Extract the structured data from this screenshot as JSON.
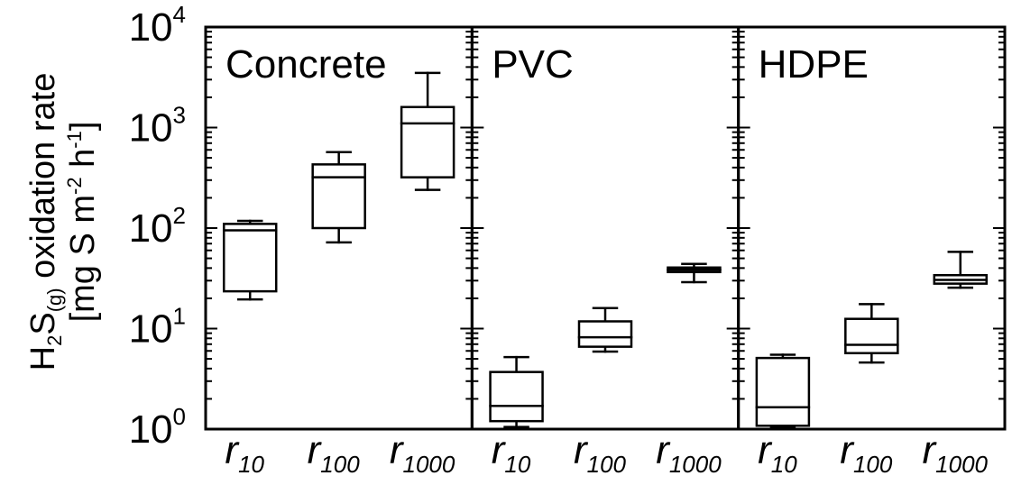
{
  "chart_data": {
    "type": "box",
    "yscale": "log",
    "ylim": [
      1,
      10000
    ],
    "yticks": [
      {
        "value": 1,
        "base": "10",
        "exp": "0"
      },
      {
        "value": 10,
        "base": "10",
        "exp": "1"
      },
      {
        "value": 100,
        "base": "10",
        "exp": "2"
      },
      {
        "value": 1000,
        "base": "10",
        "exp": "3"
      },
      {
        "value": 10000,
        "base": "10",
        "exp": "4"
      }
    ],
    "ylabel": {
      "line1_parts": [
        "H",
        "2",
        "S",
        "(g)",
        " oxidation rate"
      ],
      "line2_parts": [
        "[mg S m",
        "-2",
        " h",
        "-1",
        "]"
      ]
    },
    "categories": [
      {
        "main": "r",
        "sub": "10"
      },
      {
        "main": "r",
        "sub": "100"
      },
      {
        "main": "r",
        "sub": "1000"
      }
    ],
    "panels": [
      {
        "title": "Concrete",
        "boxes": [
          {
            "whisker_low": 19.5,
            "q1": 23.5,
            "median": 95,
            "q3": 110,
            "whisker_high": 118
          },
          {
            "whisker_low": 72,
            "q1": 100,
            "median": 320,
            "q3": 430,
            "whisker_high": 570
          },
          {
            "whisker_low": 240,
            "q1": 320,
            "median": 1100,
            "q3": 1600,
            "whisker_high": 3500
          }
        ]
      },
      {
        "title": "PVC",
        "boxes": [
          {
            "whisker_low": 1.05,
            "q1": 1.2,
            "median": 1.7,
            "q3": 3.7,
            "whisker_high": 5.2
          },
          {
            "whisker_low": 5.9,
            "q1": 6.6,
            "median": 8.2,
            "q3": 11.8,
            "whisker_high": 16
          },
          {
            "whisker_low": 29,
            "q1": 36.5,
            "median": 38.5,
            "q3": 40.5,
            "whisker_high": 44
          }
        ]
      },
      {
        "title": "HDPE",
        "boxes": [
          {
            "whisker_low": 1.05,
            "q1": 1.08,
            "median": 1.65,
            "q3": 5.1,
            "whisker_high": 5.5
          },
          {
            "whisker_low": 4.6,
            "q1": 5.7,
            "median": 6.9,
            "q3": 12.5,
            "whisker_high": 17.5
          },
          {
            "whisker_low": 25.5,
            "q1": 28,
            "median": 30.5,
            "q3": 34,
            "whisker_high": 58
          }
        ]
      }
    ],
    "grid": false,
    "legend": "none"
  }
}
